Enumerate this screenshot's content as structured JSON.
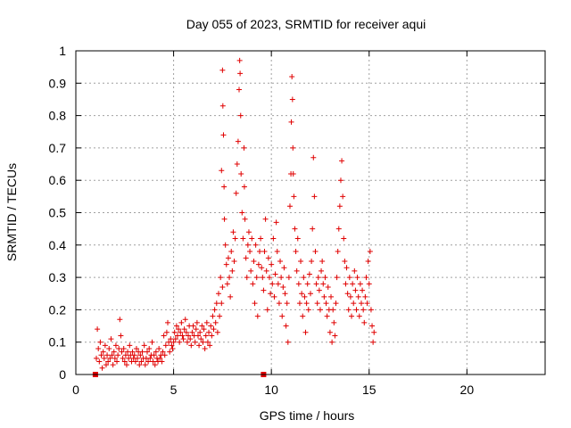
{
  "chart_data": {
    "type": "scatter",
    "title": "Day 055 of 2023, SRMTID for receiver aqui",
    "xlabel": "GPS time / hours",
    "ylabel": "SRMTID / TECUs",
    "xlim": [
      0,
      24
    ],
    "ylim": [
      0,
      1
    ],
    "xticks": [
      0,
      5,
      10,
      15,
      20
    ],
    "yticks": [
      0,
      0.1,
      0.2,
      0.3,
      0.4,
      0.5,
      0.6,
      0.7,
      0.8,
      0.9,
      1
    ],
    "xtick_labels": [
      "0",
      "5",
      "10",
      "15",
      "20"
    ],
    "ytick_labels": [
      "0",
      "0.1",
      "0.2",
      "0.3",
      "0.4",
      "0.5",
      "0.6",
      "0.7",
      "0.8",
      "0.9",
      "1"
    ],
    "grid": true,
    "marker": "+",
    "color": "#e00000",
    "baseline_markers": [
      {
        "x": 1.0,
        "y": 0
      },
      {
        "x": 9.6,
        "y": 0
      }
    ],
    "series": [
      {
        "name": "SRMTID",
        "points": [
          [
            1.05,
            0.05
          ],
          [
            1.1,
            0.14
          ],
          [
            1.15,
            0.08
          ],
          [
            1.2,
            0.04
          ],
          [
            1.25,
            0.1
          ],
          [
            1.3,
            0.06
          ],
          [
            1.35,
            0.02
          ],
          [
            1.4,
            0.07
          ],
          [
            1.45,
            0.05
          ],
          [
            1.5,
            0.09
          ],
          [
            1.55,
            0.03
          ],
          [
            1.6,
            0.06
          ],
          [
            1.65,
            0.04
          ],
          [
            1.7,
            0.08
          ],
          [
            1.75,
            0.05
          ],
          [
            1.8,
            0.11
          ],
          [
            1.85,
            0.06
          ],
          [
            1.9,
            0.03
          ],
          [
            1.95,
            0.07
          ],
          [
            2.0,
            0.05
          ],
          [
            2.05,
            0.09
          ],
          [
            2.1,
            0.04
          ],
          [
            2.15,
            0.06
          ],
          [
            2.2,
            0.08
          ],
          [
            2.25,
            0.17
          ],
          [
            2.3,
            0.12
          ],
          [
            2.35,
            0.07
          ],
          [
            2.4,
            0.05
          ],
          [
            2.45,
            0.08
          ],
          [
            2.5,
            0.04
          ],
          [
            2.55,
            0.06
          ],
          [
            2.6,
            0.03
          ],
          [
            2.65,
            0.07
          ],
          [
            2.7,
            0.05
          ],
          [
            2.75,
            0.09
          ],
          [
            2.8,
            0.06
          ],
          [
            2.85,
            0.04
          ],
          [
            2.9,
            0.07
          ],
          [
            2.95,
            0.05
          ],
          [
            3.0,
            0.06
          ],
          [
            3.05,
            0.04
          ],
          [
            3.1,
            0.08
          ],
          [
            3.15,
            0.05
          ],
          [
            3.2,
            0.07
          ],
          [
            3.25,
            0.03
          ],
          [
            3.3,
            0.06
          ],
          [
            3.35,
            0.04
          ],
          [
            3.4,
            0.07
          ],
          [
            3.45,
            0.05
          ],
          [
            3.5,
            0.09
          ],
          [
            3.55,
            0.03
          ],
          [
            3.6,
            0.05
          ],
          [
            3.65,
            0.07
          ],
          [
            3.7,
            0.04
          ],
          [
            3.75,
            0.08
          ],
          [
            3.8,
            0.05
          ],
          [
            3.85,
            0.06
          ],
          [
            3.9,
            0.1
          ],
          [
            3.95,
            0.04
          ],
          [
            4.0,
            0.06
          ],
          [
            4.05,
            0.03
          ],
          [
            4.1,
            0.07
          ],
          [
            4.15,
            0.05
          ],
          [
            4.2,
            0.04
          ],
          [
            4.25,
            0.08
          ],
          [
            4.3,
            0.05
          ],
          [
            4.35,
            0.06
          ],
          [
            4.4,
            0.04
          ],
          [
            4.45,
            0.07
          ],
          [
            4.5,
            0.12
          ],
          [
            4.55,
            0.06
          ],
          [
            4.6,
            0.09
          ],
          [
            4.65,
            0.13
          ],
          [
            4.7,
            0.16
          ],
          [
            4.75,
            0.1
          ],
          [
            4.8,
            0.07
          ],
          [
            4.85,
            0.11
          ],
          [
            4.9,
            0.09
          ],
          [
            4.95,
            0.08
          ],
          [
            5.0,
            0.1
          ],
          [
            5.05,
            0.13
          ],
          [
            5.1,
            0.11
          ],
          [
            5.15,
            0.15
          ],
          [
            5.2,
            0.12
          ],
          [
            5.25,
            0.14
          ],
          [
            5.3,
            0.1
          ],
          [
            5.35,
            0.13
          ],
          [
            5.4,
            0.16
          ],
          [
            5.45,
            0.12
          ],
          [
            5.5,
            0.11
          ],
          [
            5.55,
            0.14
          ],
          [
            5.6,
            0.17
          ],
          [
            5.65,
            0.13
          ],
          [
            5.7,
            0.1
          ],
          [
            5.75,
            0.12
          ],
          [
            5.8,
            0.15
          ],
          [
            5.85,
            0.11
          ],
          [
            5.9,
            0.09
          ],
          [
            5.95,
            0.13
          ],
          [
            6.0,
            0.15
          ],
          [
            6.05,
            0.12
          ],
          [
            6.1,
            0.1
          ],
          [
            6.15,
            0.14
          ],
          [
            6.2,
            0.16
          ],
          [
            6.25,
            0.12
          ],
          [
            6.3,
            0.09
          ],
          [
            6.35,
            0.13
          ],
          [
            6.4,
            0.11
          ],
          [
            6.45,
            0.15
          ],
          [
            6.5,
            0.1
          ],
          [
            6.55,
            0.14
          ],
          [
            6.6,
            0.08
          ],
          [
            6.65,
            0.12
          ],
          [
            6.7,
            0.16
          ],
          [
            6.75,
            0.1
          ],
          [
            6.8,
            0.13
          ],
          [
            6.85,
            0.09
          ],
          [
            6.9,
            0.15
          ],
          [
            6.95,
            0.12
          ],
          [
            7.0,
            0.18
          ],
          [
            7.05,
            0.14
          ],
          [
            7.1,
            0.2
          ],
          [
            7.15,
            0.16
          ],
          [
            7.2,
            0.22
          ],
          [
            7.25,
            0.13
          ],
          [
            7.3,
            0.25
          ],
          [
            7.35,
            0.18
          ],
          [
            7.4,
            0.3
          ],
          [
            7.45,
            0.22
          ],
          [
            7.5,
            0.27
          ],
          [
            7.45,
            0.63
          ],
          [
            7.5,
            0.94
          ],
          [
            7.52,
            0.83
          ],
          [
            7.55,
            0.74
          ],
          [
            7.58,
            0.58
          ],
          [
            7.6,
            0.48
          ],
          [
            7.65,
            0.4
          ],
          [
            7.7,
            0.34
          ],
          [
            7.75,
            0.28
          ],
          [
            7.8,
            0.36
          ],
          [
            7.85,
            0.3
          ],
          [
            7.9,
            0.24
          ],
          [
            7.95,
            0.38
          ],
          [
            8.0,
            0.32
          ],
          [
            8.05,
            0.44
          ],
          [
            8.1,
            0.35
          ],
          [
            8.15,
            0.42
          ],
          [
            8.2,
            0.56
          ],
          [
            8.25,
            0.65
          ],
          [
            8.3,
            0.72
          ],
          [
            8.35,
            0.88
          ],
          [
            8.38,
            0.97
          ],
          [
            8.4,
            0.93
          ],
          [
            8.43,
            0.8
          ],
          [
            8.45,
            0.62
          ],
          [
            8.5,
            0.5
          ],
          [
            8.55,
            0.42
          ],
          [
            8.6,
            0.7
          ],
          [
            8.62,
            0.58
          ],
          [
            8.65,
            0.48
          ],
          [
            8.7,
            0.36
          ],
          [
            8.75,
            0.3
          ],
          [
            8.8,
            0.4
          ],
          [
            8.85,
            0.44
          ],
          [
            8.9,
            0.38
          ],
          [
            8.95,
            0.32
          ],
          [
            9.0,
            0.42
          ],
          [
            9.05,
            0.28
          ],
          [
            9.1,
            0.35
          ],
          [
            9.15,
            0.22
          ],
          [
            9.2,
            0.4
          ],
          [
            9.25,
            0.3
          ],
          [
            9.3,
            0.18
          ],
          [
            9.35,
            0.34
          ],
          [
            9.4,
            0.38
          ],
          [
            9.45,
            0.42
          ],
          [
            9.5,
            0.33
          ],
          [
            9.55,
            0.3
          ],
          [
            9.6,
            0.26
          ],
          [
            9.65,
            0.38
          ],
          [
            9.7,
            0.48
          ],
          [
            9.75,
            0.32
          ],
          [
            9.8,
            0.2
          ],
          [
            9.85,
            0.36
          ],
          [
            9.9,
            0.3
          ],
          [
            9.95,
            0.25
          ],
          [
            10.0,
            0.34
          ],
          [
            10.05,
            0.28
          ],
          [
            10.1,
            0.42
          ],
          [
            10.15,
            0.24
          ],
          [
            10.2,
            0.31
          ],
          [
            10.25,
            0.47
          ],
          [
            10.3,
            0.38
          ],
          [
            10.35,
            0.28
          ],
          [
            10.4,
            0.22
          ],
          [
            10.45,
            0.35
          ],
          [
            10.5,
            0.3
          ],
          [
            10.55,
            0.18
          ],
          [
            10.6,
            0.27
          ],
          [
            10.65,
            0.33
          ],
          [
            10.7,
            0.25
          ],
          [
            10.75,
            0.15
          ],
          [
            10.8,
            0.22
          ],
          [
            10.85,
            0.1
          ],
          [
            10.9,
            0.3
          ],
          [
            10.95,
            0.52
          ],
          [
            11.0,
            0.62
          ],
          [
            11.02,
            0.78
          ],
          [
            11.05,
            0.92
          ],
          [
            11.08,
            0.85
          ],
          [
            11.1,
            0.7
          ],
          [
            11.12,
            0.62
          ],
          [
            11.15,
            0.55
          ],
          [
            11.2,
            0.45
          ],
          [
            11.25,
            0.38
          ],
          [
            11.3,
            0.32
          ],
          [
            11.35,
            0.42
          ],
          [
            11.4,
            0.28
          ],
          [
            11.45,
            0.22
          ],
          [
            11.5,
            0.35
          ],
          [
            11.55,
            0.25
          ],
          [
            11.6,
            0.18
          ],
          [
            11.65,
            0.3
          ],
          [
            11.7,
            0.24
          ],
          [
            11.75,
            0.13
          ],
          [
            11.8,
            0.22
          ],
          [
            11.85,
            0.28
          ],
          [
            11.9,
            0.2
          ],
          [
            11.95,
            0.31
          ],
          [
            12.0,
            0.25
          ],
          [
            12.05,
            0.35
          ],
          [
            12.1,
            0.45
          ],
          [
            12.15,
            0.67
          ],
          [
            12.2,
            0.55
          ],
          [
            12.25,
            0.38
          ],
          [
            12.3,
            0.28
          ],
          [
            12.35,
            0.22
          ],
          [
            12.4,
            0.3
          ],
          [
            12.45,
            0.26
          ],
          [
            12.5,
            0.2
          ],
          [
            12.55,
            0.32
          ],
          [
            12.6,
            0.35
          ],
          [
            12.65,
            0.28
          ],
          [
            12.7,
            0.24
          ],
          [
            12.75,
            0.3
          ],
          [
            12.8,
            0.22
          ],
          [
            12.85,
            0.18
          ],
          [
            12.9,
            0.27
          ],
          [
            12.95,
            0.2
          ],
          [
            13.0,
            0.13
          ],
          [
            13.05,
            0.24
          ],
          [
            13.1,
            0.1
          ],
          [
            13.15,
            0.2
          ],
          [
            13.2,
            0.16
          ],
          [
            13.25,
            0.12
          ],
          [
            13.3,
            0.22
          ],
          [
            13.35,
            0.3
          ],
          [
            13.4,
            0.38
          ],
          [
            13.45,
            0.45
          ],
          [
            13.5,
            0.52
          ],
          [
            13.55,
            0.6
          ],
          [
            13.6,
            0.66
          ],
          [
            13.65,
            0.55
          ],
          [
            13.7,
            0.42
          ],
          [
            13.75,
            0.35
          ],
          [
            13.8,
            0.28
          ],
          [
            13.85,
            0.33
          ],
          [
            13.9,
            0.25
          ],
          [
            13.95,
            0.2
          ],
          [
            14.0,
            0.3
          ],
          [
            14.05,
            0.24
          ],
          [
            14.1,
            0.18
          ],
          [
            14.15,
            0.28
          ],
          [
            14.2,
            0.22
          ],
          [
            14.25,
            0.32
          ],
          [
            14.3,
            0.26
          ],
          [
            14.35,
            0.2
          ],
          [
            14.4,
            0.3
          ],
          [
            14.45,
            0.24
          ],
          [
            14.5,
            0.18
          ],
          [
            14.55,
            0.28
          ],
          [
            14.6,
            0.22
          ],
          [
            14.65,
            0.26
          ],
          [
            14.7,
            0.2
          ],
          [
            14.75,
            0.16
          ],
          [
            14.8,
            0.24
          ],
          [
            14.85,
            0.3
          ],
          [
            14.9,
            0.22
          ],
          [
            14.95,
            0.35
          ],
          [
            15.0,
            0.28
          ],
          [
            15.05,
            0.38
          ],
          [
            15.1,
            0.2
          ],
          [
            15.15,
            0.15
          ],
          [
            15.2,
            0.1
          ],
          [
            15.25,
            0.13
          ]
        ]
      }
    ]
  }
}
